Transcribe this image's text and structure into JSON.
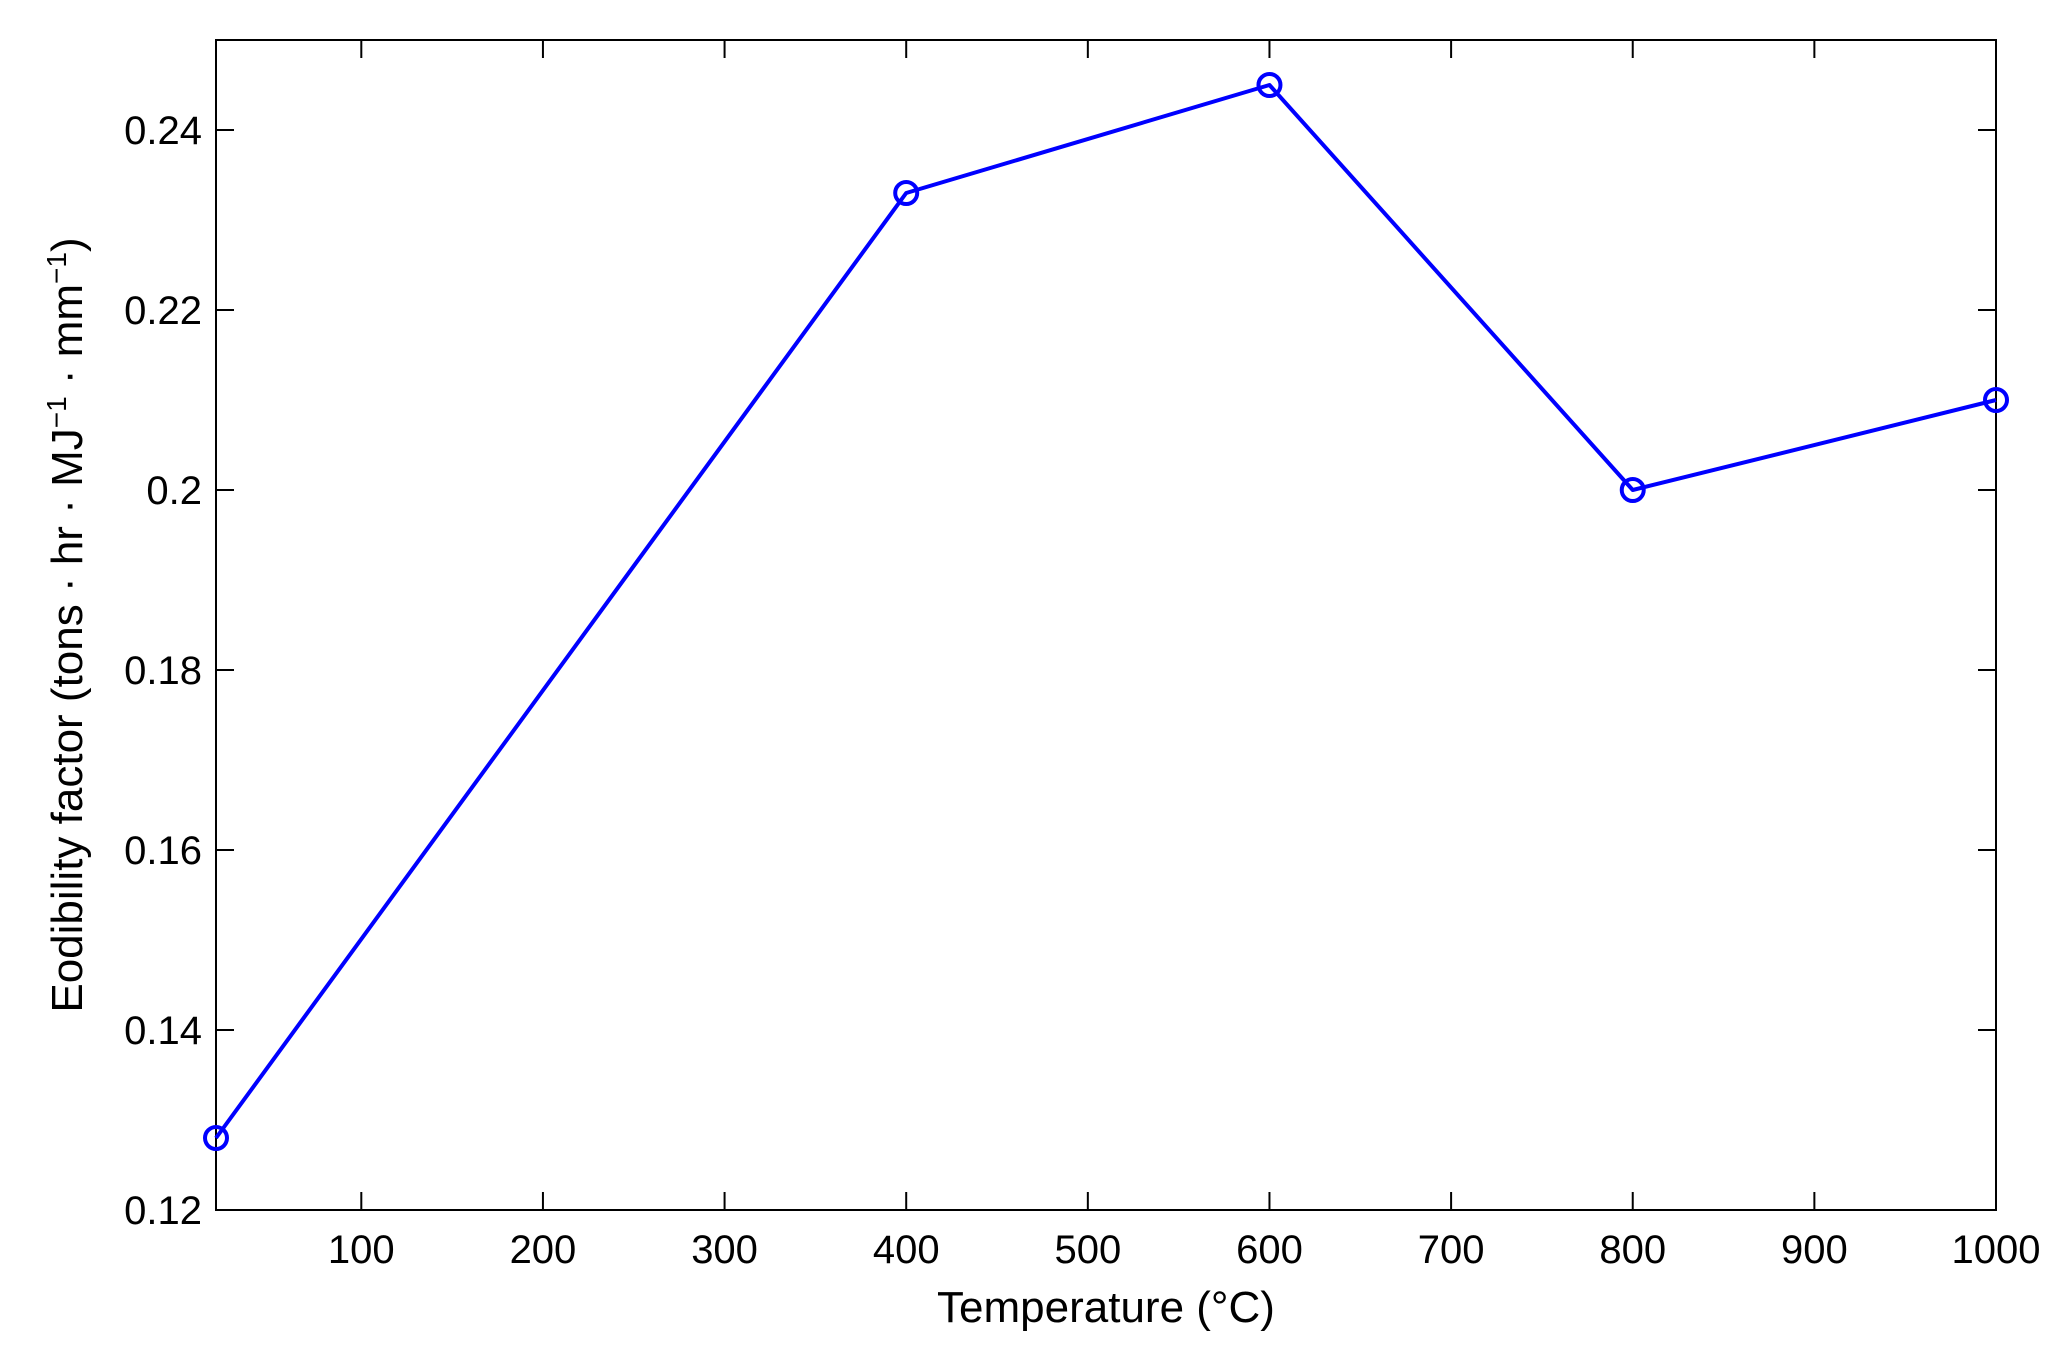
{
  "chart_data": {
    "type": "line",
    "title": "",
    "xlabel": "Temperature (°C)",
    "ylabel": {
      "prefix": "Eodibility factor (tons · hr · MJ",
      "sup1": "−1",
      "middle": " · mm",
      "sup2": "−1",
      "suffix": ")"
    },
    "xlim": [
      20,
      1000
    ],
    "ylim": [
      0.12,
      0.25
    ],
    "xticks": [
      100,
      200,
      300,
      400,
      500,
      600,
      700,
      800,
      900,
      1000
    ],
    "yticks": [
      0.12,
      0.14,
      0.16,
      0.18,
      0.2,
      0.22,
      0.24
    ],
    "xtick_labels": [
      "100",
      "200",
      "300",
      "400",
      "500",
      "600",
      "700",
      "800",
      "900",
      "1000"
    ],
    "ytick_labels": [
      "0.12",
      "0.14",
      "0.16",
      "0.18",
      "0.2",
      "0.22",
      "0.24"
    ],
    "grid": false,
    "series": [
      {
        "x": [
          20,
          400,
          600,
          800,
          1000
        ],
        "y": [
          0.128,
          0.233,
          0.245,
          0.2,
          0.21
        ],
        "color": "#0000ff",
        "marker": "circle-open"
      }
    ]
  }
}
